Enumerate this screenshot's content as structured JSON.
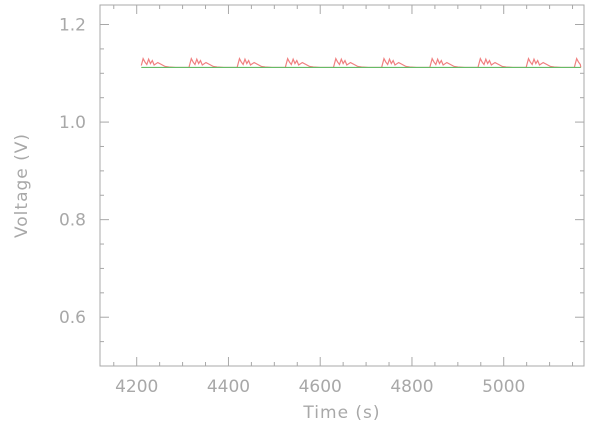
{
  "chart_data": {
    "type": "line",
    "title": "",
    "xlabel": "Time (s)",
    "ylabel": "Voltage (V)",
    "xlim": [
      4120,
      5175
    ],
    "ylim": [
      0.5,
      1.24
    ],
    "x_ticks": [
      4200,
      4400,
      4600,
      4800,
      5000
    ],
    "x_minor_step": 50,
    "y_ticks": [
      0.6,
      0.8,
      1.0,
      1.2
    ],
    "y_tick_labels": [
      "0.6",
      "0.8",
      "1.0",
      "1.2"
    ],
    "y_minor_step": 0.05,
    "grid": false,
    "colors": {
      "axis": "#a8a8a8",
      "red": "#f08080",
      "green": "#66bb66"
    },
    "series": [
      {
        "color": "#f08080",
        "start": 4210,
        "end": 5168,
        "baseline": 1.112,
        "period": 105,
        "pattern": [
          [
            0,
            1.116
          ],
          [
            4,
            1.13
          ],
          [
            8,
            1.123
          ],
          [
            12,
            1.118
          ],
          [
            16,
            1.129
          ],
          [
            20,
            1.12
          ],
          [
            24,
            1.126
          ],
          [
            28,
            1.117
          ],
          [
            36,
            1.122
          ],
          [
            44,
            1.118
          ],
          [
            52,
            1.114
          ],
          [
            60,
            1.113
          ],
          [
            75,
            1.112
          ],
          [
            104,
            1.112
          ]
        ]
      },
      {
        "color": "#66bb66",
        "start": 4210,
        "end": 5168,
        "constant": 1.112
      }
    ]
  }
}
